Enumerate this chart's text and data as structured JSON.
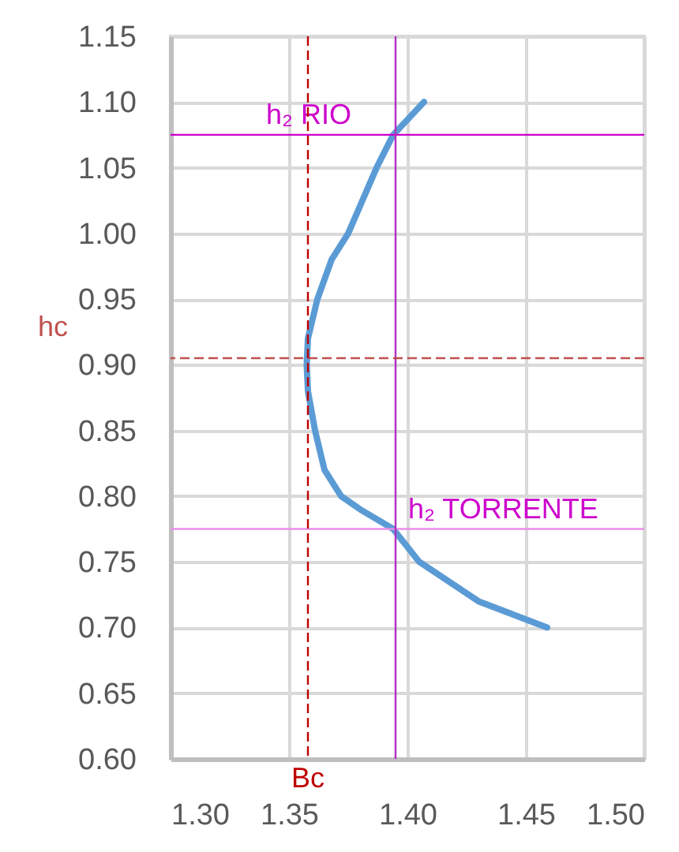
{
  "chart_data": {
    "type": "line",
    "series": [
      {
        "color": "#5b9bd5",
        "x": [
          1.459,
          1.43,
          1.405,
          1.394,
          1.38,
          1.372,
          1.365,
          1.361,
          1.358,
          1.3575,
          1.358,
          1.362,
          1.368,
          1.375,
          1.387,
          1.394,
          1.407
        ],
        "values": [
          0.7,
          0.72,
          0.75,
          0.775,
          0.79,
          0.8,
          0.82,
          0.85,
          0.88,
          0.9,
          0.92,
          0.95,
          0.98,
          1.0,
          1.05,
          1.075,
          1.1
        ]
      }
    ],
    "xlim": [
      1.3,
      1.5
    ],
    "xticks": [
      {
        "value": 1.3,
        "label": "1.30"
      },
      1.35,
      {
        "value": 1.4,
        "label": "1.40"
      },
      1.45,
      {
        "value": 1.5,
        "label": "1.50"
      }
    ],
    "ylim": [
      0.6,
      1.15
    ],
    "yticks": [
      {
        "value": 0.6,
        "label": "0.60"
      },
      0.65,
      {
        "value": 0.7,
        "label": "0.70"
      },
      0.75,
      {
        "value": 0.8,
        "label": "0.80"
      },
      0.85,
      {
        "value": 0.9,
        "label": "0.90"
      },
      0.95,
      {
        "value": 1.0,
        "label": "1.00"
      },
      1.05,
      {
        "value": 1.1,
        "label": "1.10"
      },
      1.15
    ],
    "grid": true,
    "marker": "none",
    "line_style": "solid",
    "ref_lines": [
      {
        "axis": "y",
        "value": 1.075,
        "label": "h₂  RIO",
        "color": "#cc00cc",
        "line_style": "solid"
      },
      {
        "axis": "y",
        "value": 0.775,
        "label": "h₂  TORRENTE",
        "color": "#e98fe9",
        "line_style": "solid"
      },
      {
        "axis": "x",
        "value": 1.395,
        "label": null,
        "color": "#b030c0",
        "line_style": "solid"
      },
      {
        "axis": "y",
        "value": 0.905,
        "label": "hc",
        "color": "#c0504d",
        "line_style": "dashed"
      },
      {
        "axis": "x",
        "value": 1.358,
        "label": "Bc",
        "color": "#c00000",
        "line_style": "dashed"
      }
    ]
  }
}
